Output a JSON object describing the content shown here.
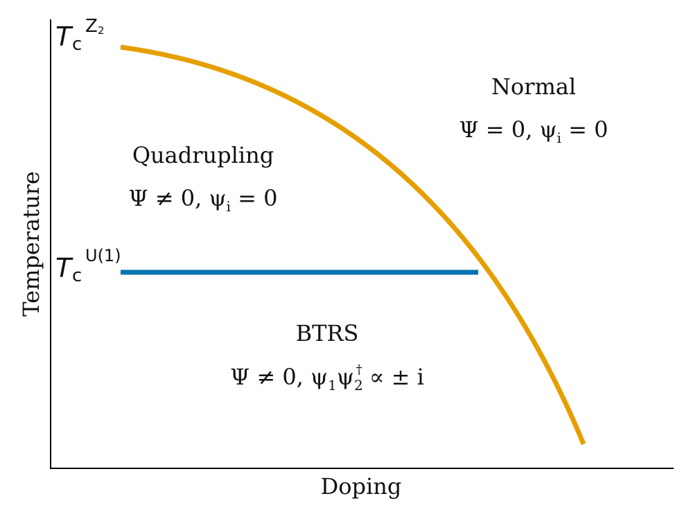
{
  "diagram": {
    "x_axis_label": "Doping",
    "y_axis_label": "Temperature",
    "tc_z2": {
      "T": "T",
      "sub": "c",
      "sup": "Z",
      "sup_sub": "2"
    },
    "tc_u1": {
      "T": "T",
      "sub": "c",
      "sup": "U(1)"
    },
    "regions": {
      "normal": {
        "title": "Normal",
        "formula": "Ψ = 0,  ψ",
        "formula_sub": "i",
        "formula_tail": " = 0"
      },
      "quadrupling": {
        "title": "Quadrupling",
        "formula": "Ψ ≠ 0,  ψ",
        "formula_sub": "i",
        "formula_tail": " = 0"
      },
      "btrs": {
        "title": "BTRS",
        "formula_a": "Ψ ≠ 0,  ψ",
        "sub1": "1",
        "formula_b": "ψ",
        "sub2": "2",
        "sup_dagger": "†",
        "formula_tail": " ∝ ± i"
      }
    },
    "colors": {
      "z2_curve": "#E69F00",
      "u1_line": "#0072B2",
      "axes": "#000000"
    }
  }
}
